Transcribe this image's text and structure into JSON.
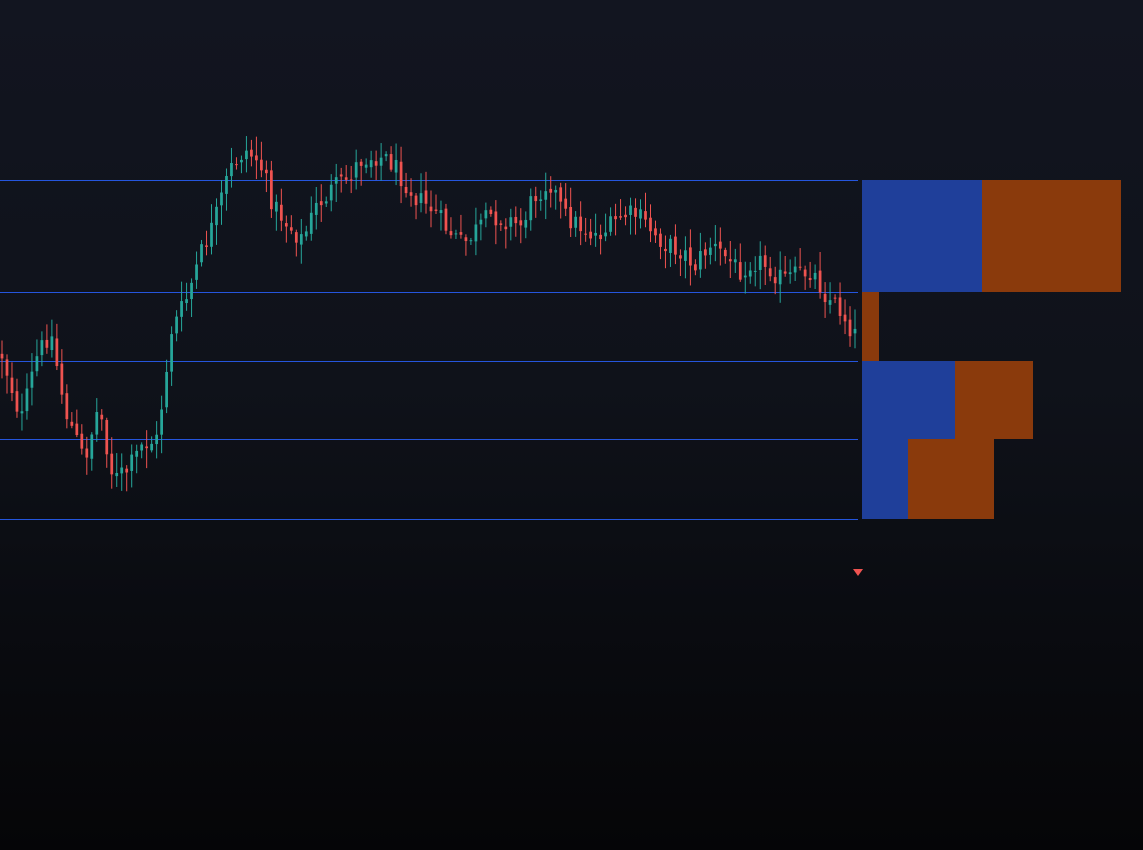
{
  "colors": {
    "background_top": "#121520",
    "background_bottom": "#050507",
    "bull": "#26a69a",
    "bear": "#ef5350",
    "level_line": "#2962ff",
    "profile_buy": "#1f3f9a",
    "profile_sell": "#8a3a0c",
    "marker": "#ef5350"
  },
  "chart_data": {
    "type": "candlestick",
    "title": "",
    "xlabel": "",
    "ylabel": "",
    "grid": false,
    "legend": "none",
    "bar_count": 172,
    "ylim": [
      0,
      850
    ],
    "anchors": [
      [
        0,
        355
      ],
      [
        4,
        420
      ],
      [
        7,
        360
      ],
      [
        10,
        330
      ],
      [
        13,
        410
      ],
      [
        17,
        460
      ],
      [
        20,
        405
      ],
      [
        23,
        480
      ],
      [
        26,
        470
      ],
      [
        29,
        445
      ],
      [
        32,
        440
      ],
      [
        35,
        330
      ],
      [
        38,
        300
      ],
      [
        41,
        255
      ],
      [
        44,
        220
      ],
      [
        47,
        170
      ],
      [
        50,
        150
      ],
      [
        53,
        160
      ],
      [
        56,
        205
      ],
      [
        59,
        225
      ],
      [
        62,
        240
      ],
      [
        65,
        205
      ],
      [
        68,
        190
      ],
      [
        71,
        180
      ],
      [
        74,
        160
      ],
      [
        77,
        155
      ],
      [
        80,
        160
      ],
      [
        83,
        180
      ],
      [
        86,
        200
      ],
      [
        89,
        210
      ],
      [
        92,
        230
      ],
      [
        95,
        245
      ],
      [
        98,
        230
      ],
      [
        101,
        215
      ],
      [
        104,
        220
      ],
      [
        107,
        225
      ],
      [
        110,
        195
      ],
      [
        113,
        180
      ],
      [
        116,
        215
      ],
      [
        119,
        225
      ],
      [
        122,
        235
      ],
      [
        125,
        230
      ],
      [
        128,
        215
      ],
      [
        131,
        215
      ],
      [
        134,
        230
      ],
      [
        137,
        245
      ],
      [
        140,
        250
      ],
      [
        143,
        265
      ],
      [
        146,
        245
      ],
      [
        149,
        255
      ],
      [
        152,
        270
      ],
      [
        155,
        260
      ],
      [
        158,
        265
      ],
      [
        161,
        280
      ],
      [
        164,
        275
      ],
      [
        167,
        270
      ],
      [
        170,
        295
      ],
      [
        173,
        310
      ],
      [
        176,
        335
      ]
    ],
    "levels": [
      180,
      292,
      361,
      439,
      519
    ],
    "profile": [
      {
        "top": 180,
        "bottom": 292,
        "buy": 120,
        "sell": 139
      },
      {
        "top": 292,
        "bottom": 361,
        "buy": 0,
        "sell": 17
      },
      {
        "top": 361,
        "bottom": 439,
        "buy": 93,
        "sell": 78
      },
      {
        "top": 439,
        "bottom": 519,
        "buy": 46,
        "sell": 86
      }
    ]
  }
}
